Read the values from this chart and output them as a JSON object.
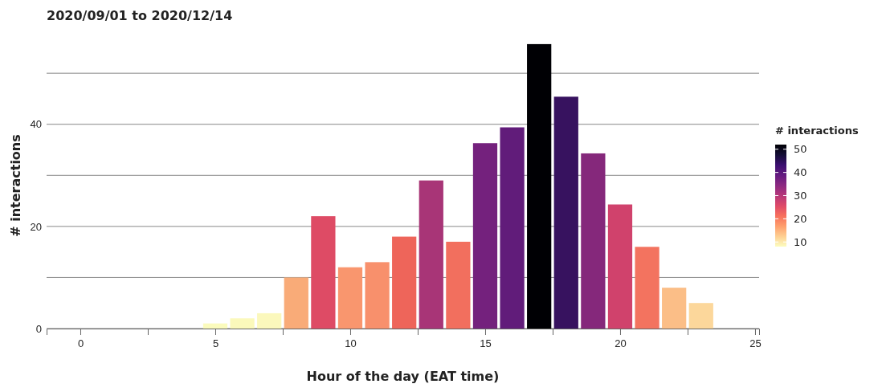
{
  "chart_data": {
    "type": "bar",
    "title": "2020/09/01 to 2020/12/14",
    "xlabel": "Hour of the day (EAT time)",
    "ylabel": "# interactions",
    "clabel": "# interactions",
    "x": [
      0,
      1,
      2,
      3,
      4,
      5,
      6,
      7,
      8,
      9,
      10,
      11,
      12,
      13,
      14,
      15,
      16,
      17,
      18,
      19,
      20,
      21,
      22,
      23
    ],
    "values": [
      0,
      0,
      0,
      0,
      0,
      1,
      2,
      3,
      10,
      22,
      12,
      13,
      18,
      29,
      17,
      36.3,
      39.4,
      55.7,
      45.4,
      34.3,
      24.3,
      16,
      8,
      5
    ],
    "colors": [
      "#fcfdbf",
      "#fcfdbf",
      "#fcfdbf",
      "#fcfdbf",
      "#fcfdbf",
      "#fbfbbd",
      "#fbf9bb",
      "#fbf8bc",
      "#f9ab78",
      "#de4b65",
      "#f9966e",
      "#f8906c",
      "#ee655a",
      "#a83577",
      "#f26f5e",
      "#74217d",
      "#611c7a",
      "#000004",
      "#37125f",
      "#85287b",
      "#d0426c",
      "#f3735f",
      "#fbbe87",
      "#fcd79b"
    ],
    "xlim": [
      -1.25,
      25.15
    ],
    "xticks": [
      0,
      {
        "value": 2.5,
        "label": null
      },
      5,
      {
        "value": 7.5,
        "label": null
      },
      10,
      {
        "value": 12.5,
        "label": null
      },
      15,
      {
        "value": 17.5,
        "label": null
      },
      20,
      {
        "value": 22.5,
        "label": null
      },
      25
    ],
    "ylim": [
      0,
      56
    ],
    "yticks": [
      0,
      {
        "value": 10,
        "label": null
      },
      20,
      {
        "value": 30,
        "label": null
      },
      40,
      {
        "value": 50,
        "label": null
      }
    ],
    "clim": [
      8,
      52
    ],
    "cticks": [
      10,
      20,
      30,
      40,
      50
    ],
    "grid": "y"
  }
}
